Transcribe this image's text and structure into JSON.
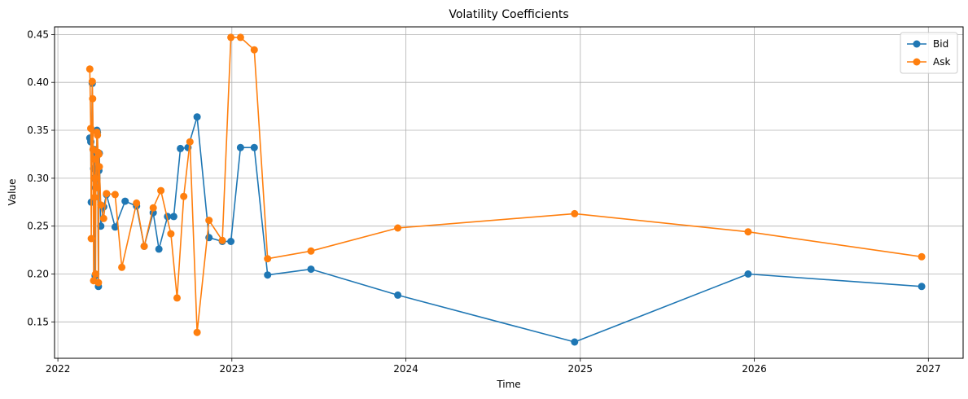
{
  "chart_data": {
    "type": "line",
    "title": "Volatility Coefficients",
    "xlabel": "Time",
    "ylabel": "Value",
    "x_axis_type": "date",
    "xlim": [
      "2021-12-25",
      "2027-03-15"
    ],
    "ylim": [
      0.112,
      0.458
    ],
    "x_ticks": [
      "2022-01-01",
      "2023-01-01",
      "2024-01-01",
      "2025-01-01",
      "2026-01-01",
      "2027-01-01"
    ],
    "x_tick_labels": [
      "2022",
      "2023",
      "2024",
      "2025",
      "2026",
      "2027"
    ],
    "y_ticks": [
      0.15,
      0.2,
      0.25,
      0.3,
      0.35,
      0.4,
      0.45
    ],
    "y_tick_labels": [
      "0.15",
      "0.20",
      "0.25",
      "0.30",
      "0.35",
      "0.40",
      "0.45"
    ],
    "grid": true,
    "legend_position": "top-right",
    "marker": "circle",
    "series": [
      {
        "name": "Bid",
        "color": "#1f77b4",
        "points": [
          [
            "2022-03-09",
            0.342
          ],
          [
            "2022-03-11",
            0.338
          ],
          [
            "2022-03-12",
            0.275
          ],
          [
            "2022-03-14",
            0.399
          ],
          [
            "2022-03-16",
            0.33
          ],
          [
            "2022-03-17",
            0.31
          ],
          [
            "2022-03-18",
            0.3
          ],
          [
            "2022-03-19",
            0.33
          ],
          [
            "2022-03-20",
            0.198
          ],
          [
            "2022-03-21",
            0.29
          ],
          [
            "2022-03-23",
            0.3
          ],
          [
            "2022-03-24",
            0.35
          ],
          [
            "2022-03-25",
            0.348
          ],
          [
            "2022-03-27",
            0.187
          ],
          [
            "2022-03-28",
            0.308
          ],
          [
            "2022-03-29",
            0.326
          ],
          [
            "2022-04-01",
            0.25
          ],
          [
            "2022-04-07",
            0.27
          ],
          [
            "2022-04-13",
            0.283
          ],
          [
            "2022-05-01",
            0.249
          ],
          [
            "2022-05-22",
            0.276
          ],
          [
            "2022-06-15",
            0.271
          ],
          [
            "2022-07-01",
            0.229
          ],
          [
            "2022-07-20",
            0.264
          ],
          [
            "2022-08-01",
            0.226
          ],
          [
            "2022-08-19",
            0.26
          ],
          [
            "2022-09-01",
            0.26
          ],
          [
            "2022-09-15",
            0.331
          ],
          [
            "2022-10-01",
            0.332
          ],
          [
            "2022-10-20",
            0.364
          ],
          [
            "2022-11-14",
            0.238
          ],
          [
            "2022-12-12",
            0.234
          ],
          [
            "2022-12-30",
            0.234
          ],
          [
            "2023-01-19",
            0.332
          ],
          [
            "2023-02-17",
            0.332
          ],
          [
            "2023-03-17",
            0.199
          ],
          [
            "2023-06-16",
            0.205
          ],
          [
            "2023-12-15",
            0.178
          ],
          [
            "2024-12-20",
            0.129
          ],
          [
            "2025-12-19",
            0.2
          ],
          [
            "2026-12-18",
            0.187
          ]
        ]
      },
      {
        "name": "Ask",
        "color": "#ff7f0e",
        "points": [
          [
            "2022-03-09",
            0.414
          ],
          [
            "2022-03-11",
            0.352
          ],
          [
            "2022-03-12",
            0.237
          ],
          [
            "2022-03-14",
            0.401
          ],
          [
            "2022-03-15",
            0.383
          ],
          [
            "2022-03-16",
            0.33
          ],
          [
            "2022-03-17",
            0.193
          ],
          [
            "2022-03-18",
            0.32
          ],
          [
            "2022-03-19",
            0.28
          ],
          [
            "2022-03-20",
            0.3
          ],
          [
            "2022-03-21",
            0.2
          ],
          [
            "2022-03-22",
            0.32
          ],
          [
            "2022-03-23",
            0.29
          ],
          [
            "2022-03-24",
            0.348
          ],
          [
            "2022-03-25",
            0.345
          ],
          [
            "2022-03-26",
            0.327
          ],
          [
            "2022-03-27",
            0.191
          ],
          [
            "2022-03-28",
            0.325
          ],
          [
            "2022-03-29",
            0.312
          ],
          [
            "2022-04-01",
            0.272
          ],
          [
            "2022-04-07",
            0.258
          ],
          [
            "2022-04-13",
            0.284
          ],
          [
            "2022-05-01",
            0.283
          ],
          [
            "2022-05-15",
            0.207
          ],
          [
            "2022-06-15",
            0.274
          ],
          [
            "2022-07-01",
            0.229
          ],
          [
            "2022-07-20",
            0.269
          ],
          [
            "2022-08-05",
            0.287
          ],
          [
            "2022-08-26",
            0.242
          ],
          [
            "2022-09-08",
            0.175
          ],
          [
            "2022-09-22",
            0.281
          ],
          [
            "2022-10-05",
            0.338
          ],
          [
            "2022-10-20",
            0.139
          ],
          [
            "2022-11-14",
            0.256
          ],
          [
            "2022-12-12",
            0.235
          ],
          [
            "2022-12-30",
            0.447
          ],
          [
            "2023-01-19",
            0.447
          ],
          [
            "2023-02-17",
            0.434
          ],
          [
            "2023-03-17",
            0.216
          ],
          [
            "2023-06-16",
            0.224
          ],
          [
            "2023-12-15",
            0.248
          ],
          [
            "2024-12-20",
            0.263
          ],
          [
            "2025-12-19",
            0.244
          ],
          [
            "2026-12-18",
            0.218
          ]
        ]
      }
    ]
  }
}
